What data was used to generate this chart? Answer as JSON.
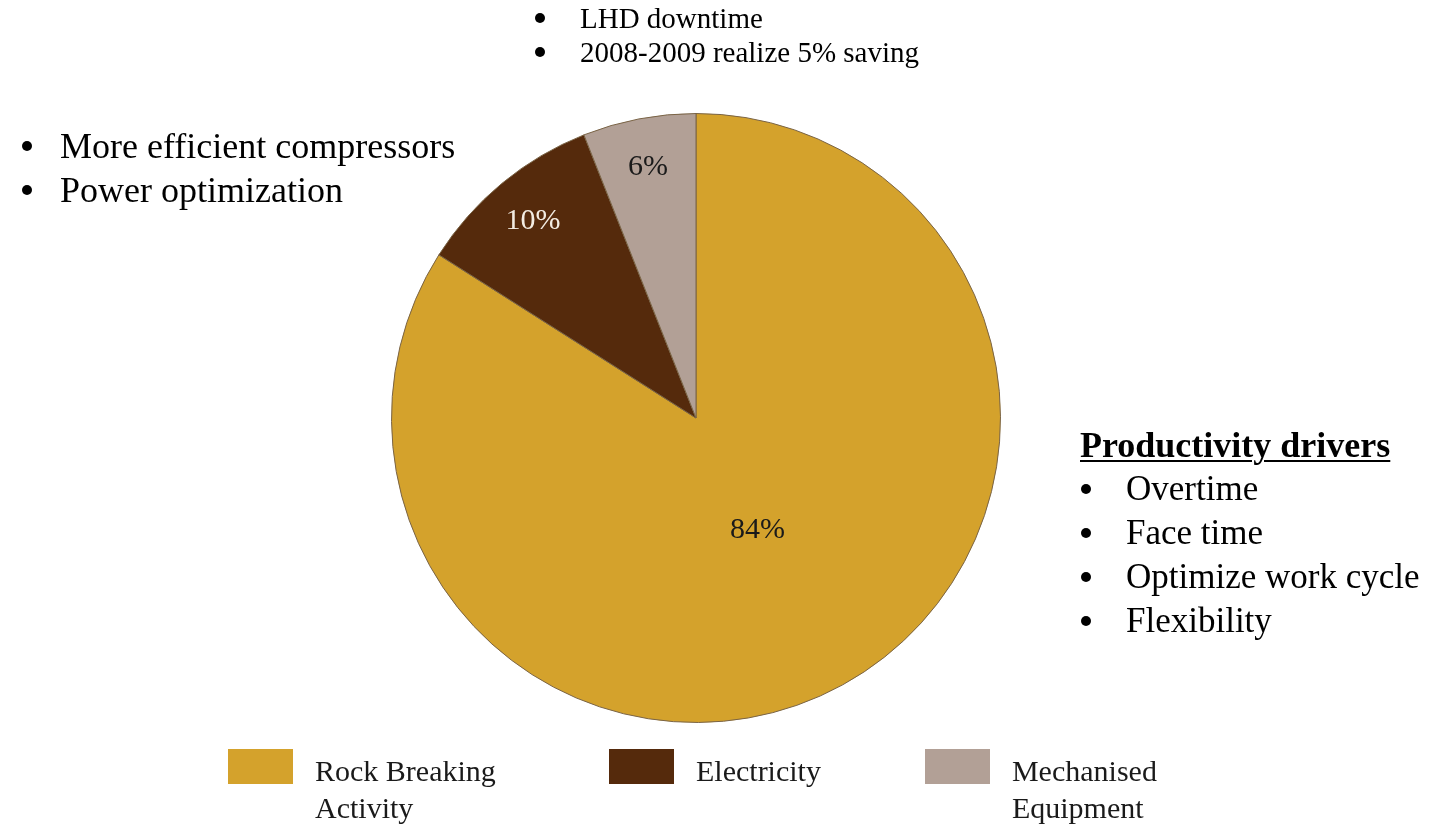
{
  "chart_data": {
    "type": "pie",
    "categories": [
      "Rock Breaking Activity",
      "Electricity",
      "Mechanised Equipment"
    ],
    "values": [
      84,
      10,
      6
    ],
    "colors": [
      "#d4a22c",
      "#552a0c",
      "#b2a096"
    ],
    "value_labels": [
      "84%",
      "10%",
      "6%"
    ],
    "legend": "bottom",
    "annotations": [
      "LHD downtime",
      "2008-2009 realize 5% saving",
      "More efficient compressors",
      "Power optimization",
      "Productivity drivers",
      "Overtime",
      "Face time",
      "Optimize work cycle",
      "Flexibility"
    ]
  }
}
